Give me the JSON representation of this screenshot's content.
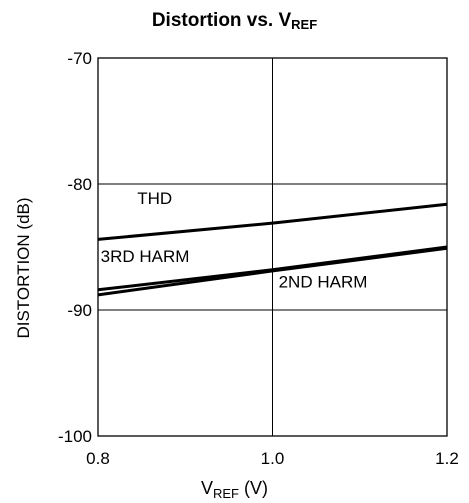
{
  "chart_data": {
    "type": "line",
    "title": {
      "main": "Distortion vs. V",
      "sub": "REF"
    },
    "xlabel": {
      "main": "V",
      "sub": "REF",
      "unit": " (V)"
    },
    "ylabel": "DISTORTION (dB)",
    "xlim": [
      0.8,
      1.2
    ],
    "ylim": [
      -100,
      -70
    ],
    "x_ticks": [
      0.8,
      1.0,
      1.2
    ],
    "x_tick_labels": [
      "0.8",
      "1.0",
      "1.2"
    ],
    "y_ticks": [
      -100,
      -90,
      -80,
      -70
    ],
    "y_tick_labels": [
      "-100",
      "-90",
      "-80",
      "-70"
    ],
    "grid": true,
    "series": [
      {
        "name": "THD",
        "x": [
          0.8,
          1.0,
          1.2
        ],
        "y": [
          -84.4,
          -83.1,
          -81.6
        ]
      },
      {
        "name": "3RD HARM",
        "x": [
          0.8,
          1.0,
          1.2
        ],
        "y": [
          -88.4,
          -86.8,
          -85.0
        ]
      },
      {
        "name": "2ND HARM",
        "x": [
          0.8,
          1.0,
          1.2
        ],
        "y": [
          -88.8,
          -86.9,
          -85.1
        ]
      }
    ],
    "annotations": [
      {
        "text": "THD",
        "x": 0.845,
        "y": -81.6
      },
      {
        "text": "3RD HARM",
        "x": 0.803,
        "y": -86.2
      },
      {
        "text": "2ND HARM",
        "x": 1.007,
        "y": -88.2
      }
    ]
  }
}
